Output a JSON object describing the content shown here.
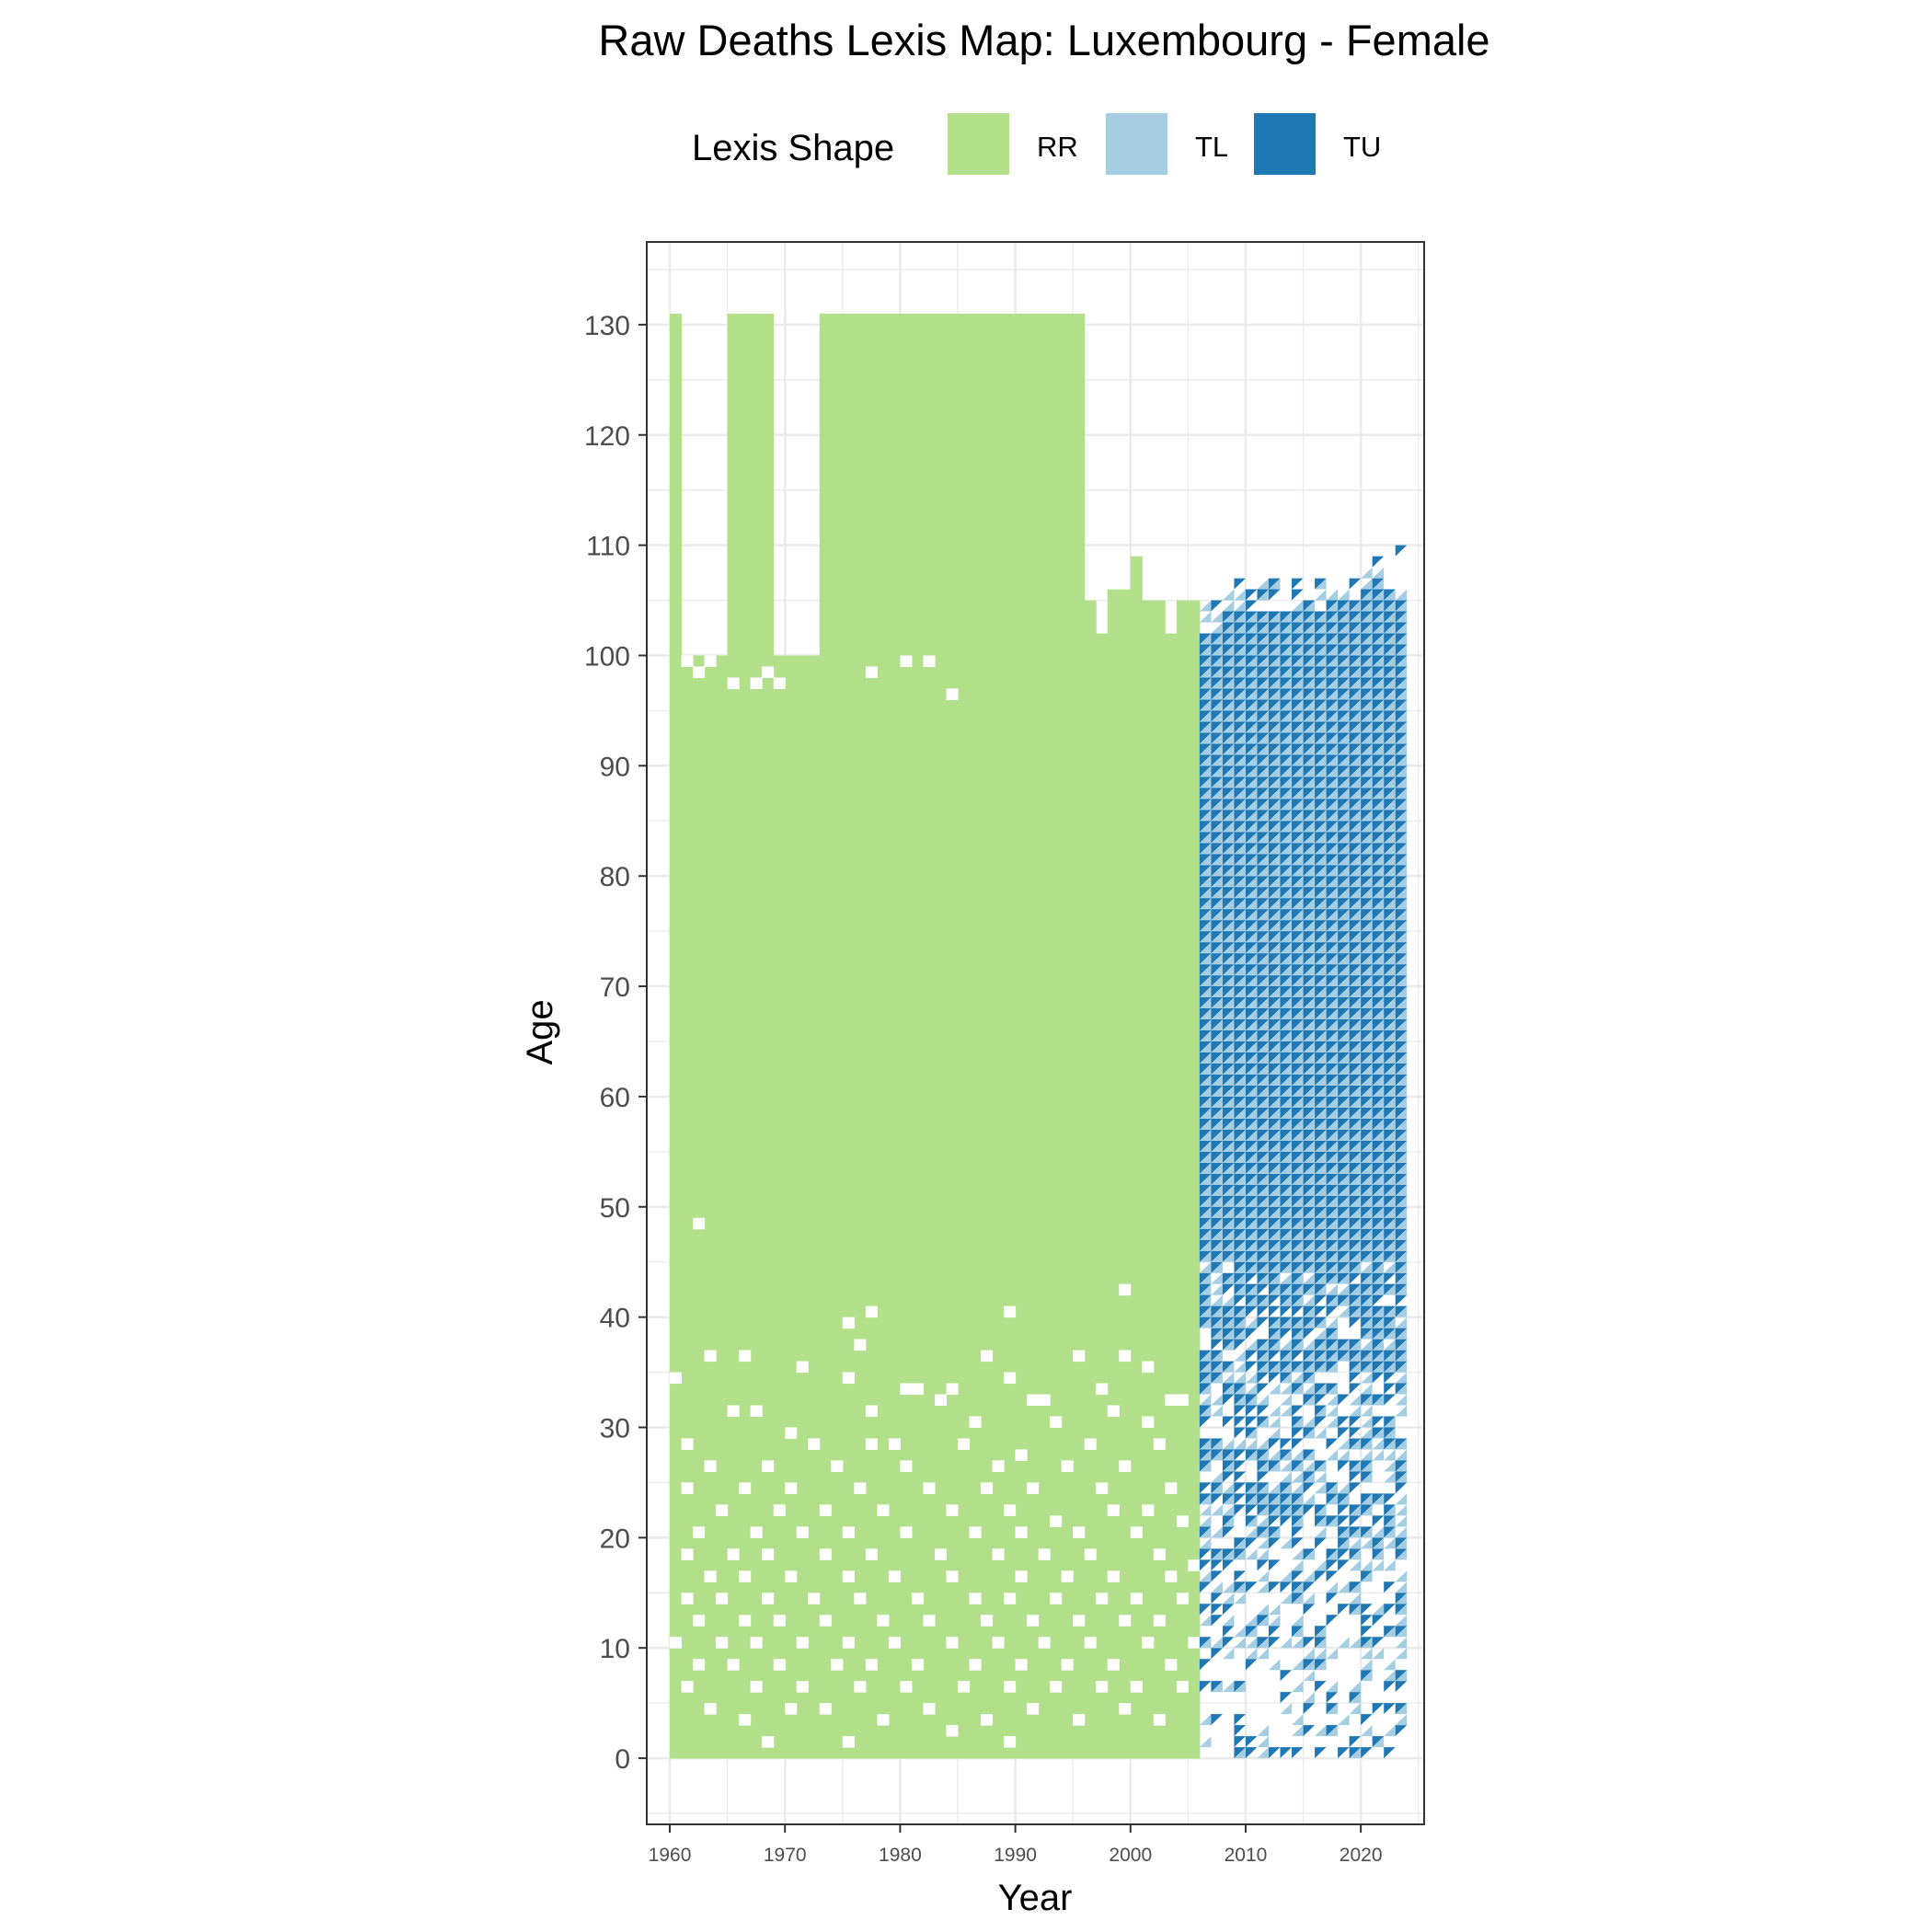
{
  "chart_data": {
    "type": "heatmap",
    "title": "Raw Deaths Lexis Map: Luxembourg - Female",
    "xlabel": "Year",
    "ylabel": "Age",
    "xlim": [
      1958,
      2025.5
    ],
    "ylim": [
      -6,
      137.5
    ],
    "x_ticks": [
      1960,
      1970,
      1980,
      1990,
      2000,
      2010,
      2020
    ],
    "x_tick_labels": [
      "1960",
      "1970",
      "1980",
      "1990",
      "2000",
      "2010",
      "2020"
    ],
    "y_ticks": [
      0,
      10,
      20,
      30,
      40,
      50,
      60,
      70,
      80,
      90,
      100,
      110,
      120,
      130
    ],
    "y_tick_labels": [
      "0",
      "10",
      "20",
      "30",
      "40",
      "50",
      "60",
      "70",
      "80",
      "90",
      "100",
      "110",
      "120",
      "130"
    ],
    "grid": true,
    "legend": {
      "title": "Lexis Shape",
      "position": "top",
      "entries": [
        {
          "label": "RR",
          "color": "#b2df8a"
        },
        {
          "label": "TL",
          "color": "#a6cee3"
        },
        {
          "label": "TU",
          "color": "#1f78b4"
        }
      ]
    },
    "series": [
      {
        "name": "RR",
        "color": "#b2df8a",
        "description_periods": [
          {
            "years": [
              1960,
              1960
            ],
            "ages": [
              0,
              131
            ]
          },
          {
            "years": [
              1961,
              1964
            ],
            "ages": [
              0,
              100
            ]
          },
          {
            "years": [
              1965,
              1968
            ],
            "ages": [
              0,
              131
            ]
          },
          {
            "years": [
              1969,
              1972
            ],
            "ages": [
              0,
              100
            ]
          },
          {
            "years": [
              1973,
              1995
            ],
            "ages": [
              0,
              131
            ]
          },
          {
            "years": [
              1996,
              2005
            ],
            "ages": [
              0,
              106
            ]
          }
        ]
      },
      {
        "name": "TL",
        "color": "#a6cee3",
        "description_periods": [
          {
            "years": [
              2006,
              2023
            ],
            "ages": [
              0,
              111
            ]
          }
        ]
      },
      {
        "name": "TU",
        "color": "#1f78b4",
        "description_periods": [
          {
            "years": [
              2006,
              2023
            ],
            "ages": [
              0,
              110
            ]
          }
        ]
      }
    ],
    "rr_blocks": [
      {
        "y0": 1960,
        "y1": 1961,
        "a0": 0,
        "a1": 131
      },
      {
        "y0": 1961,
        "y1": 1965,
        "a0": 0,
        "a1": 100
      },
      {
        "y0": 1965,
        "y1": 1969,
        "a0": 0,
        "a1": 131
      },
      {
        "y0": 1969,
        "y1": 1973,
        "a0": 0,
        "a1": 100
      },
      {
        "y0": 1973,
        "y1": 1996,
        "a0": 0,
        "a1": 131
      },
      {
        "y0": 1996,
        "y1": 2006,
        "a0": 0,
        "a1": 102
      },
      {
        "y0": 1996,
        "y1": 1997,
        "a0": 102,
        "a1": 105
      },
      {
        "y0": 1998,
        "y1": 2000,
        "a0": 102,
        "a1": 106
      },
      {
        "y0": 2000,
        "y1": 2001,
        "a0": 102,
        "a1": 109
      },
      {
        "y0": 2001,
        "y1": 2003,
        "a0": 102,
        "a1": 105
      },
      {
        "y0": 2004,
        "y1": 2006,
        "a0": 102,
        "a1": 105
      }
    ],
    "rr_holes": [
      [
        1961,
        99
      ],
      [
        1962,
        98
      ],
      [
        1963,
        99
      ],
      [
        1965,
        97
      ],
      [
        1967,
        97
      ],
      [
        1968,
        98
      ],
      [
        1969,
        97
      ],
      [
        1977,
        98
      ],
      [
        1980,
        99
      ],
      [
        1982,
        99
      ],
      [
        1984,
        96
      ],
      [
        1962,
        48
      ],
      [
        1999,
        42
      ],
      [
        1977,
        40
      ],
      [
        1989,
        40
      ],
      [
        1975,
        39
      ],
      [
        1976,
        37
      ],
      [
        1960,
        34
      ],
      [
        1963,
        36
      ],
      [
        1966,
        36
      ],
      [
        1971,
        35
      ],
      [
        1987,
        36
      ],
      [
        1995,
        36
      ],
      [
        1999,
        36
      ],
      [
        2001,
        35
      ],
      [
        1975,
        34
      ],
      [
        1980,
        33
      ],
      [
        1981,
        33
      ],
      [
        1984,
        33
      ],
      [
        1989,
        34
      ],
      [
        1997,
        33
      ],
      [
        2003,
        32
      ],
      [
        1965,
        31
      ],
      [
        1967,
        31
      ],
      [
        1977,
        31
      ],
      [
        1983,
        32
      ],
      [
        1991,
        32
      ],
      [
        1992,
        32
      ],
      [
        2004,
        32
      ],
      [
        1998,
        31
      ],
      [
        1961,
        28
      ],
      [
        1970,
        29
      ],
      [
        1977,
        28
      ],
      [
        1986,
        30
      ],
      [
        1993,
        30
      ],
      [
        2001,
        30
      ],
      [
        1972,
        28
      ],
      [
        1979,
        28
      ],
      [
        1985,
        28
      ],
      [
        1990,
        27
      ],
      [
        1996,
        28
      ],
      [
        2002,
        28
      ],
      [
        1963,
        26
      ],
      [
        1968,
        26
      ],
      [
        1974,
        26
      ],
      [
        1980,
        26
      ],
      [
        1988,
        26
      ],
      [
        1994,
        26
      ],
      [
        1999,
        26
      ],
      [
        1961,
        24
      ],
      [
        1966,
        24
      ],
      [
        1970,
        24
      ],
      [
        1976,
        24
      ],
      [
        1982,
        24
      ],
      [
        1987,
        24
      ],
      [
        1991,
        24
      ],
      [
        1997,
        24
      ],
      [
        2003,
        24
      ],
      [
        1964,
        22
      ],
      [
        1969,
        22
      ],
      [
        1973,
        22
      ],
      [
        1978,
        22
      ],
      [
        1984,
        22
      ],
      [
        1989,
        22
      ],
      [
        1993,
        21
      ],
      [
        1998,
        22
      ],
      [
        2001,
        22
      ],
      [
        2004,
        21
      ],
      [
        1962,
        20
      ],
      [
        1967,
        20
      ],
      [
        1971,
        20
      ],
      [
        1975,
        20
      ],
      [
        1980,
        20
      ],
      [
        1986,
        20
      ],
      [
        1990,
        20
      ],
      [
        1995,
        20
      ],
      [
        2000,
        20
      ],
      [
        1961,
        18
      ],
      [
        1965,
        18
      ],
      [
        1968,
        18
      ],
      [
        1973,
        18
      ],
      [
        1977,
        18
      ],
      [
        1983,
        18
      ],
      [
        1988,
        18
      ],
      [
        1992,
        18
      ],
      [
        1996,
        18
      ],
      [
        2002,
        18
      ],
      [
        2005,
        17
      ],
      [
        1963,
        16
      ],
      [
        1966,
        16
      ],
      [
        1970,
        16
      ],
      [
        1975,
        16
      ],
      [
        1979,
        16
      ],
      [
        1984,
        16
      ],
      [
        1990,
        16
      ],
      [
        1994,
        16
      ],
      [
        1998,
        16
      ],
      [
        2003,
        16
      ],
      [
        1961,
        14
      ],
      [
        1964,
        14
      ],
      [
        1968,
        14
      ],
      [
        1972,
        14
      ],
      [
        1976,
        14
      ],
      [
        1981,
        14
      ],
      [
        1986,
        14
      ],
      [
        1989,
        14
      ],
      [
        1993,
        14
      ],
      [
        1997,
        14
      ],
      [
        2000,
        14
      ],
      [
        2004,
        14
      ],
      [
        1962,
        12
      ],
      [
        1966,
        12
      ],
      [
        1969,
        12
      ],
      [
        1973,
        12
      ],
      [
        1978,
        12
      ],
      [
        1982,
        12
      ],
      [
        1987,
        12
      ],
      [
        1991,
        12
      ],
      [
        1995,
        12
      ],
      [
        1999,
        12
      ],
      [
        2002,
        12
      ],
      [
        1960,
        10
      ],
      [
        1964,
        10
      ],
      [
        1967,
        10
      ],
      [
        1971,
        10
      ],
      [
        1975,
        10
      ],
      [
        1979,
        10
      ],
      [
        1984,
        10
      ],
      [
        1988,
        10
      ],
      [
        1992,
        10
      ],
      [
        1996,
        10
      ],
      [
        2001,
        10
      ],
      [
        2005,
        10
      ],
      [
        1962,
        8
      ],
      [
        1965,
        8
      ],
      [
        1969,
        8
      ],
      [
        1974,
        8
      ],
      [
        1977,
        8
      ],
      [
        1981,
        8
      ],
      [
        1986,
        8
      ],
      [
        1990,
        8
      ],
      [
        1994,
        8
      ],
      [
        1998,
        8
      ],
      [
        2003,
        8
      ],
      [
        1961,
        6
      ],
      [
        1967,
        6
      ],
      [
        1971,
        6
      ],
      [
        1976,
        6
      ],
      [
        1980,
        6
      ],
      [
        1985,
        6
      ],
      [
        1989,
        6
      ],
      [
        1993,
        6
      ],
      [
        1997,
        6
      ],
      [
        2000,
        6
      ],
      [
        2004,
        6
      ],
      [
        1963,
        4
      ],
      [
        1966,
        3
      ],
      [
        1970,
        4
      ],
      [
        1973,
        4
      ],
      [
        1978,
        3
      ],
      [
        1982,
        4
      ],
      [
        1987,
        3
      ],
      [
        1991,
        4
      ],
      [
        1995,
        3
      ],
      [
        1999,
        4
      ],
      [
        2002,
        3
      ],
      [
        1968,
        1
      ],
      [
        1975,
        1
      ],
      [
        1984,
        2
      ],
      [
        1989,
        1
      ]
    ],
    "tri_region": {
      "years": [
        2006,
        2024
      ],
      "ages_full": [
        0,
        104
      ],
      "top_extent": [
        102,
        102,
        104,
        104,
        104,
        104,
        104,
        104,
        104,
        104,
        104,
        104,
        105,
        105,
        106,
        106,
        106,
        105
      ],
      "sparse_below_age": 45,
      "tip": {
        "year": 2023,
        "age": 109
      }
    }
  }
}
